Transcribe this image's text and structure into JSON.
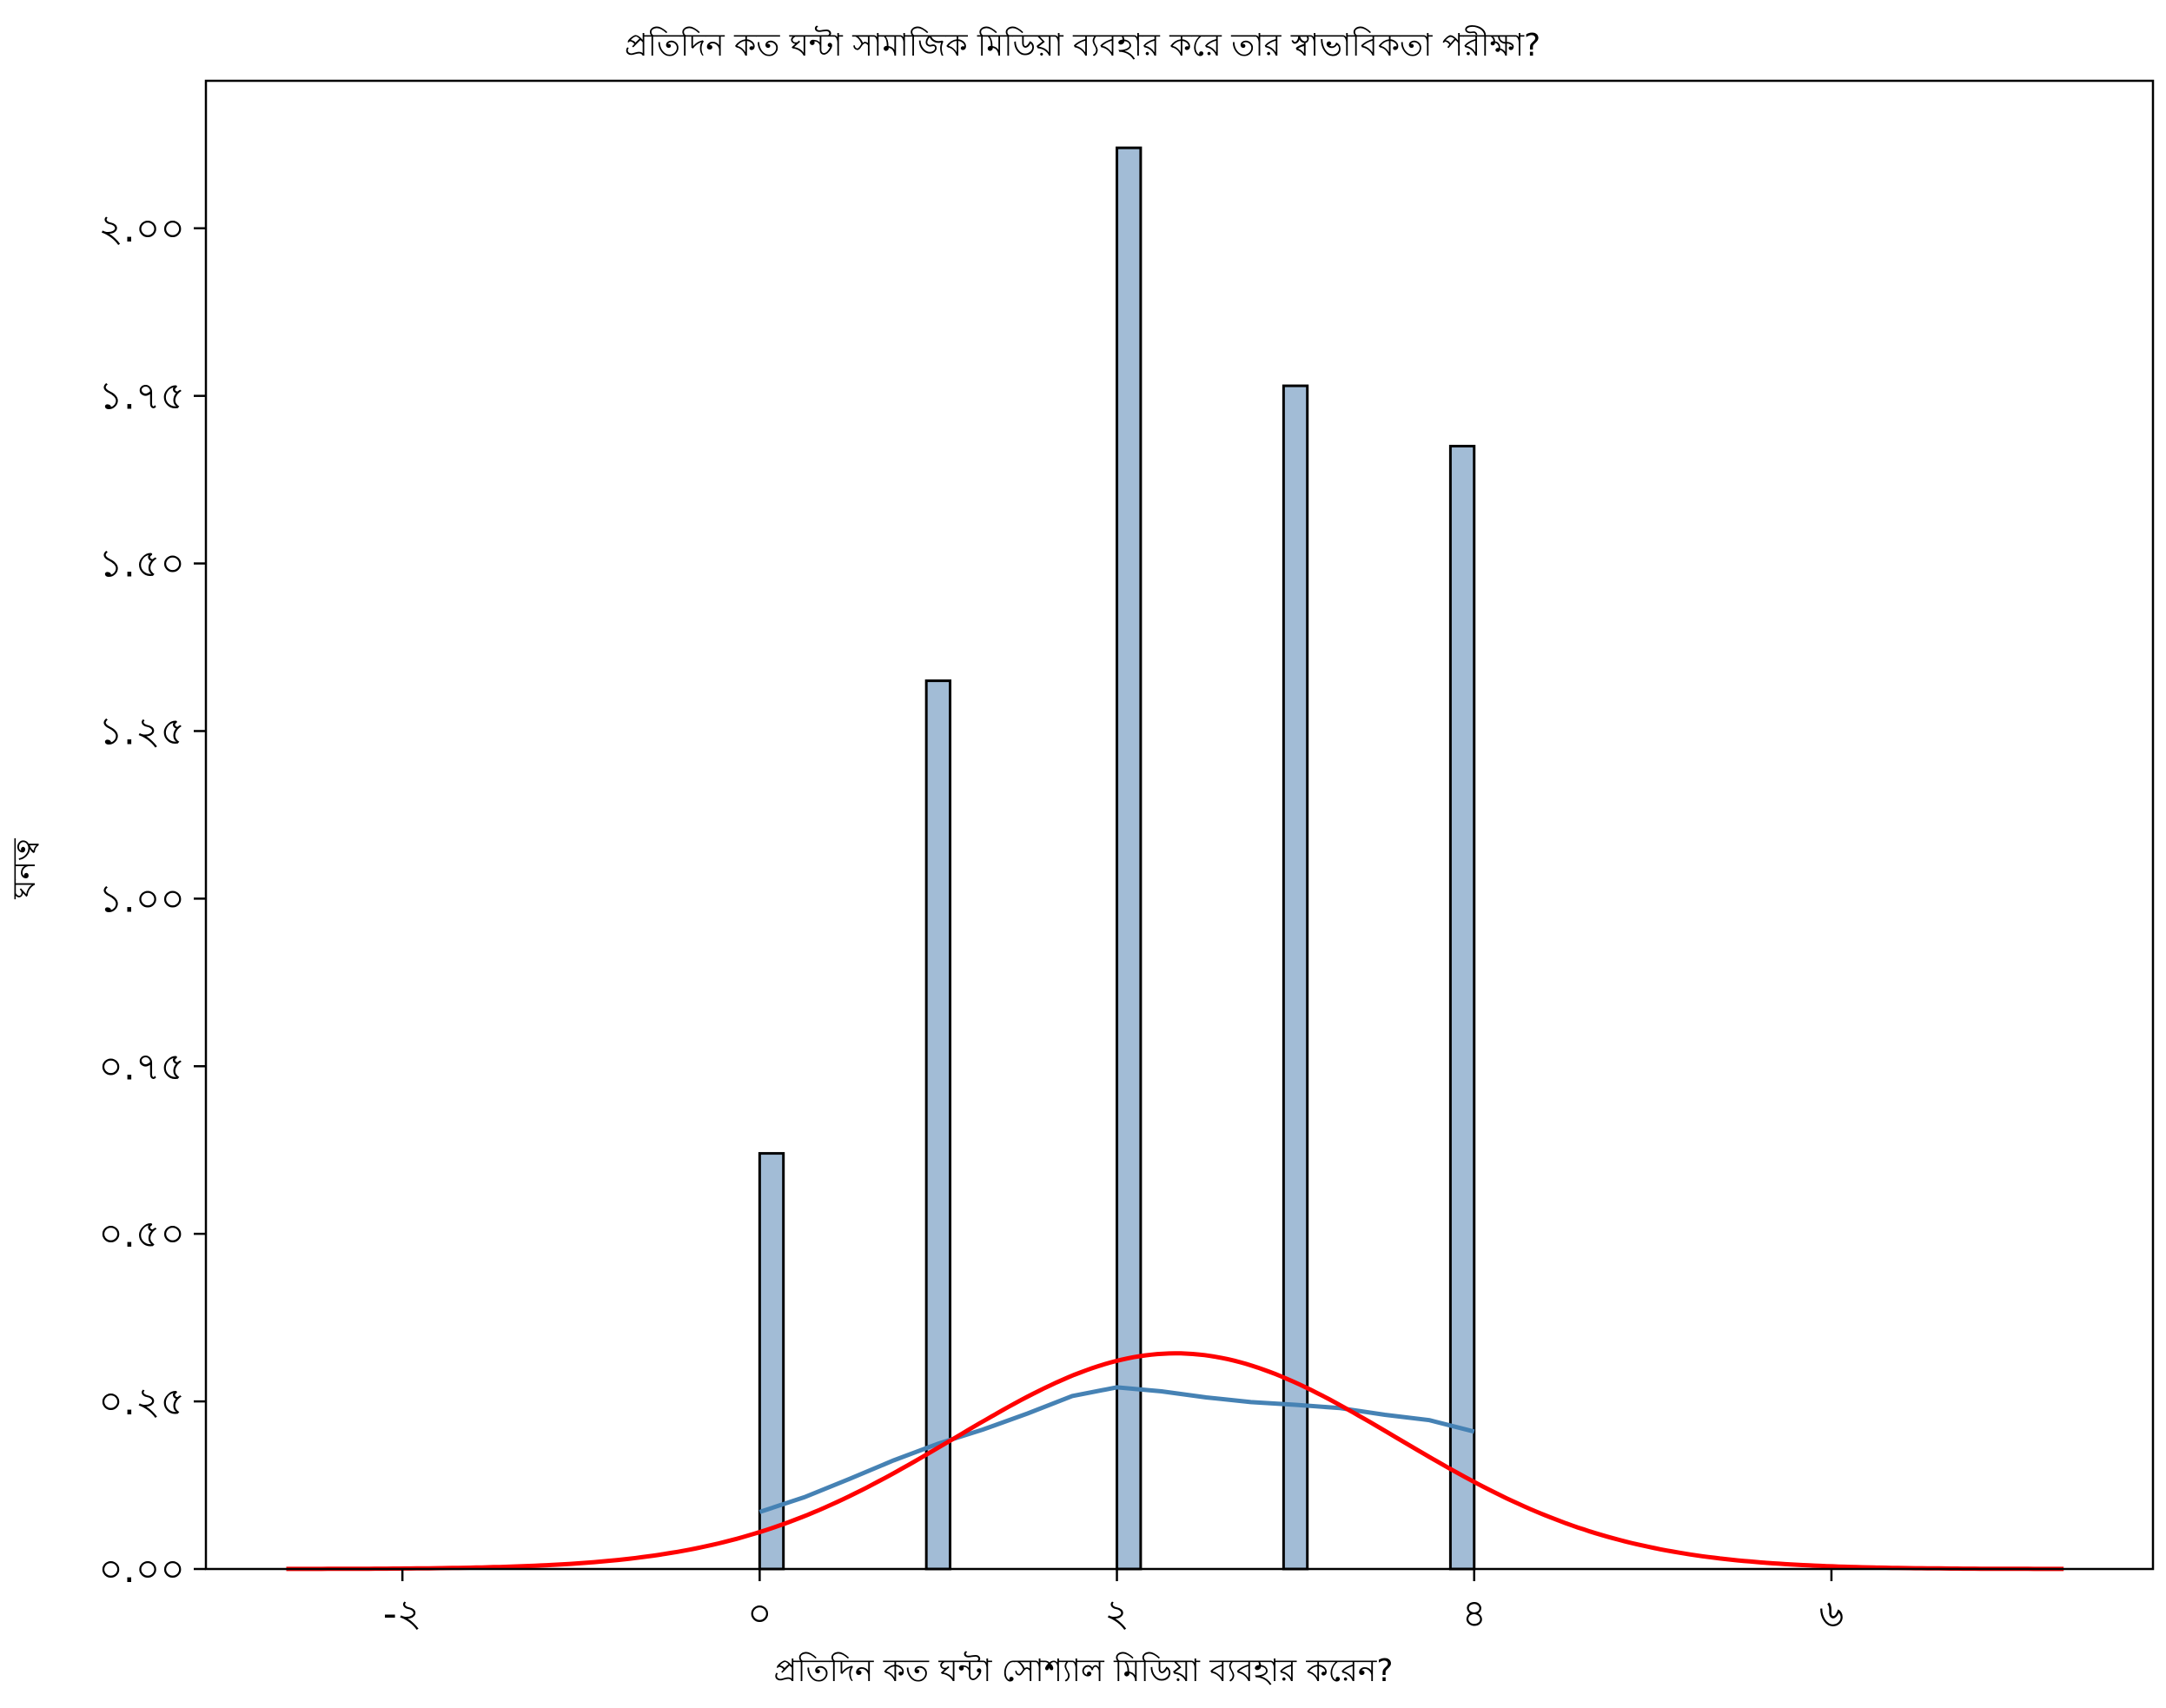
{
  "chart_data": {
    "type": "bar",
    "title": "প্রতিদিন কত ঘন্টা সামাজিক মিডিয়া ব্যবহার করে তার স্বাভাবিকতা পরীক্ষা?",
    "xlabel": "প্রতিদিন কত ঘন্টা সোশ্যাল মিডিয়া ব্যবহার করেন?",
    "ylabel": "ঘনত্ব",
    "xlim": [
      -3.1,
      7.8
    ],
    "ylim": [
      0,
      2.22
    ],
    "x_ticks": [
      -2,
      0,
      2,
      4,
      6
    ],
    "x_tick_labels": [
      "-২",
      "০",
      "২",
      "৪",
      "৬"
    ],
    "y_ticks": [
      0,
      0.25,
      0.5,
      0.75,
      1.0,
      1.25,
      1.5,
      1.75,
      2.0
    ],
    "y_tick_labels": [
      "০.০০",
      "০.২৫",
      "০.৫০",
      "০.৭৫",
      "১.০০",
      "১.২৫",
      "১.৫০",
      "১.৭৫",
      "২.০০"
    ],
    "grid": false,
    "bars": {
      "bin_width": 0.133,
      "bin_starts": [
        0,
        0.933,
        2.0,
        2.933,
        3.867
      ],
      "values": [
        0.62,
        1.325,
        2.12,
        1.765,
        1.675
      ],
      "color": "#a2bcd6",
      "edge_color": "#000000"
    },
    "series": [
      {
        "type": "kde",
        "color": "#4682b4",
        "x": [
          0,
          0.25,
          0.5,
          0.75,
          1.0,
          1.25,
          1.5,
          1.75,
          2.0,
          2.25,
          2.5,
          2.75,
          3.0,
          3.25,
          3.5,
          3.75,
          4.0
        ],
        "values": [
          0.085,
          0.107,
          0.134,
          0.162,
          0.187,
          0.208,
          0.232,
          0.258,
          0.271,
          0.265,
          0.256,
          0.249,
          0.245,
          0.24,
          0.23,
          0.222,
          0.205
        ]
      },
      {
        "type": "normal-pdf",
        "color": "#ff0000",
        "mean": 2.33,
        "std": 1.24,
        "x_range": [
          -2.65,
          7.3
        ]
      }
    ]
  }
}
